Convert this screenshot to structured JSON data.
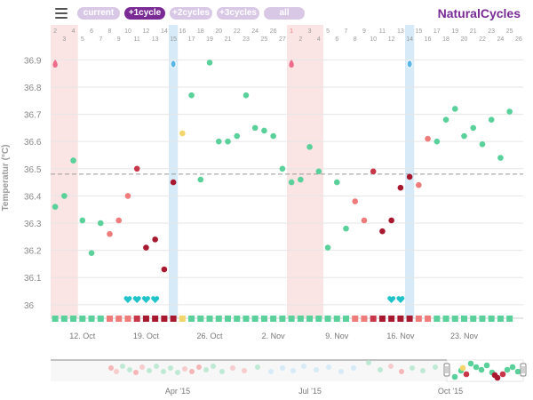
{
  "toolbar": {
    "menu_icon": "hamburger-menu-icon",
    "buttons": [
      {
        "label": "current",
        "active": false
      },
      {
        "label": "+1cycle",
        "active": true
      },
      {
        "label": "+2cycles",
        "active": false
      },
      {
        "label": "+3cycles",
        "active": false
      },
      {
        "label": "all",
        "active": false
      }
    ],
    "brand": "NaturalCycles"
  },
  "colors": {
    "brand": "#7a2a95",
    "green": "#5ad19a",
    "red_dark": "#a8182e",
    "red_mid": "#c9364a",
    "pink": "#f07b7b",
    "yellow": "#f3d66b",
    "teal": "#1fc3c8",
    "period_band": "#fbe4e4",
    "ovulation_band": "#d6ebf7",
    "coverline": "#999999"
  },
  "chart_data": {
    "type": "scatter",
    "ylabel": "Temperatur (°C)",
    "ylim": [
      35.97,
      36.96
    ],
    "yticks": [
      "36",
      "36.1",
      "36.2",
      "36.3",
      "36.4",
      "36.5",
      "36.6",
      "36.7",
      "36.8",
      "36.9"
    ],
    "coverline": 36.48,
    "cycle_day_labels": [
      "2",
      "3",
      "4",
      "5",
      "6",
      "7",
      "8",
      "9",
      "10",
      "11",
      "12",
      "13",
      "14",
      "15",
      "16",
      "17",
      "18",
      "19",
      "20",
      "21",
      "22",
      "23",
      "24",
      "25",
      "26",
      "27",
      "1",
      "2",
      "3",
      "4",
      "5",
      "6",
      "7",
      "8",
      "9",
      "10",
      "11",
      "12",
      "13",
      "14",
      "15",
      "16",
      "17",
      "18",
      "19",
      "20",
      "21",
      "22",
      "23",
      "24",
      "25",
      "26"
    ],
    "cycle_start_index": 26,
    "period_days": [
      [
        0,
        3
      ],
      [
        26,
        30
      ]
    ],
    "ovulation_days": [
      13,
      39
    ],
    "week_labels": [
      {
        "day_index": 3,
        "label": "12. Oct"
      },
      {
        "day_index": 10,
        "label": "19. Oct"
      },
      {
        "day_index": 17,
        "label": "26. Oct"
      },
      {
        "day_index": 24,
        "label": "2. Nov"
      },
      {
        "day_index": 31,
        "label": "9. Nov"
      },
      {
        "day_index": 38,
        "label": "16. Nov"
      },
      {
        "day_index": 45,
        "label": "23. Nov"
      }
    ],
    "points": [
      {
        "day": 0,
        "temp": 36.36,
        "color": "green"
      },
      {
        "day": 1,
        "temp": 36.4,
        "color": "green"
      },
      {
        "day": 2,
        "temp": 36.53,
        "color": "green"
      },
      {
        "day": 3,
        "temp": 36.31,
        "color": "green"
      },
      {
        "day": 4,
        "temp": 36.19,
        "color": "green"
      },
      {
        "day": 5,
        "temp": 36.3,
        "color": "green"
      },
      {
        "day": 6,
        "temp": 36.26,
        "color": "pink"
      },
      {
        "day": 7,
        "temp": 36.31,
        "color": "pink"
      },
      {
        "day": 8,
        "temp": 36.4,
        "color": "pink"
      },
      {
        "day": 9,
        "temp": 36.5,
        "color": "red_mid"
      },
      {
        "day": 10,
        "temp": 36.21,
        "color": "red_dark"
      },
      {
        "day": 11,
        "temp": 36.24,
        "color": "red_dark"
      },
      {
        "day": 12,
        "temp": 36.13,
        "color": "red_dark"
      },
      {
        "day": 13,
        "temp": 36.45,
        "color": "red_dark"
      },
      {
        "day": 14,
        "temp": 36.63,
        "color": "yellow"
      },
      {
        "day": 15,
        "temp": 36.77,
        "color": "green"
      },
      {
        "day": 16,
        "temp": 36.46,
        "color": "green"
      },
      {
        "day": 17,
        "temp": 36.89,
        "color": "green"
      },
      {
        "day": 18,
        "temp": 36.6,
        "color": "green"
      },
      {
        "day": 19,
        "temp": 36.6,
        "color": "green"
      },
      {
        "day": 20,
        "temp": 36.62,
        "color": "green"
      },
      {
        "day": 21,
        "temp": 36.77,
        "color": "green"
      },
      {
        "day": 22,
        "temp": 36.65,
        "color": "green"
      },
      {
        "day": 23,
        "temp": 36.64,
        "color": "green"
      },
      {
        "day": 24,
        "temp": 36.62,
        "color": "green"
      },
      {
        "day": 25,
        "temp": 36.5,
        "color": "green"
      },
      {
        "day": 26,
        "temp": 36.45,
        "color": "green"
      },
      {
        "day": 27,
        "temp": 36.46,
        "color": "green"
      },
      {
        "day": 28,
        "temp": 36.58,
        "color": "green"
      },
      {
        "day": 29,
        "temp": 36.49,
        "color": "green"
      },
      {
        "day": 30,
        "temp": 36.21,
        "color": "green"
      },
      {
        "day": 31,
        "temp": 36.45,
        "color": "green"
      },
      {
        "day": 32,
        "temp": 36.28,
        "color": "green"
      },
      {
        "day": 33,
        "temp": 36.38,
        "color": "pink"
      },
      {
        "day": 34,
        "temp": 36.31,
        "color": "pink"
      },
      {
        "day": 35,
        "temp": 36.49,
        "color": "red_mid"
      },
      {
        "day": 36,
        "temp": 36.27,
        "color": "red_dark"
      },
      {
        "day": 37,
        "temp": 36.31,
        "color": "red_dark"
      },
      {
        "day": 38,
        "temp": 36.43,
        "color": "red_dark"
      },
      {
        "day": 39,
        "temp": 36.47,
        "color": "red_dark"
      },
      {
        "day": 40,
        "temp": 36.44,
        "color": "pink"
      },
      {
        "day": 41,
        "temp": 36.61,
        "color": "pink"
      },
      {
        "day": 42,
        "temp": 36.6,
        "color": "green"
      },
      {
        "day": 43,
        "temp": 36.68,
        "color": "green"
      },
      {
        "day": 44,
        "temp": 36.72,
        "color": "green"
      },
      {
        "day": 45,
        "temp": 36.62,
        "color": "green"
      },
      {
        "day": 46,
        "temp": 36.65,
        "color": "green"
      },
      {
        "day": 47,
        "temp": 36.59,
        "color": "green"
      },
      {
        "day": 48,
        "temp": 36.68,
        "color": "green"
      },
      {
        "day": 49,
        "temp": 36.54,
        "color": "green"
      },
      {
        "day": 50,
        "temp": 36.71,
        "color": "green"
      }
    ],
    "period_drop_days": [
      0,
      26
    ],
    "ovulation_egg_days": [
      13,
      39
    ],
    "hearts_days": [
      8,
      9,
      10,
      11,
      37,
      38
    ],
    "day_status_squares": [
      "green",
      "green",
      "green",
      "green",
      "green",
      "green",
      "pink",
      "pink",
      "pink",
      "red_mid",
      "red_dark",
      "red_dark",
      "red_dark",
      "red_dark",
      "yellow",
      "green",
      "green",
      "green",
      "green",
      "green",
      "green",
      "green",
      "green",
      "green",
      "green",
      "green",
      "green",
      "green",
      "green",
      "green",
      "green",
      "green",
      "green",
      "pink",
      "pink",
      "red_mid",
      "red_dark",
      "red_dark",
      "red_dark",
      "red_dark",
      "pink",
      "pink",
      "green",
      "green",
      "green",
      "green",
      "green",
      "green",
      "green",
      "green",
      "green"
    ],
    "navigator": {
      "month_labels": [
        "Apr '15",
        "Jul '15",
        "Oct '15"
      ]
    }
  }
}
